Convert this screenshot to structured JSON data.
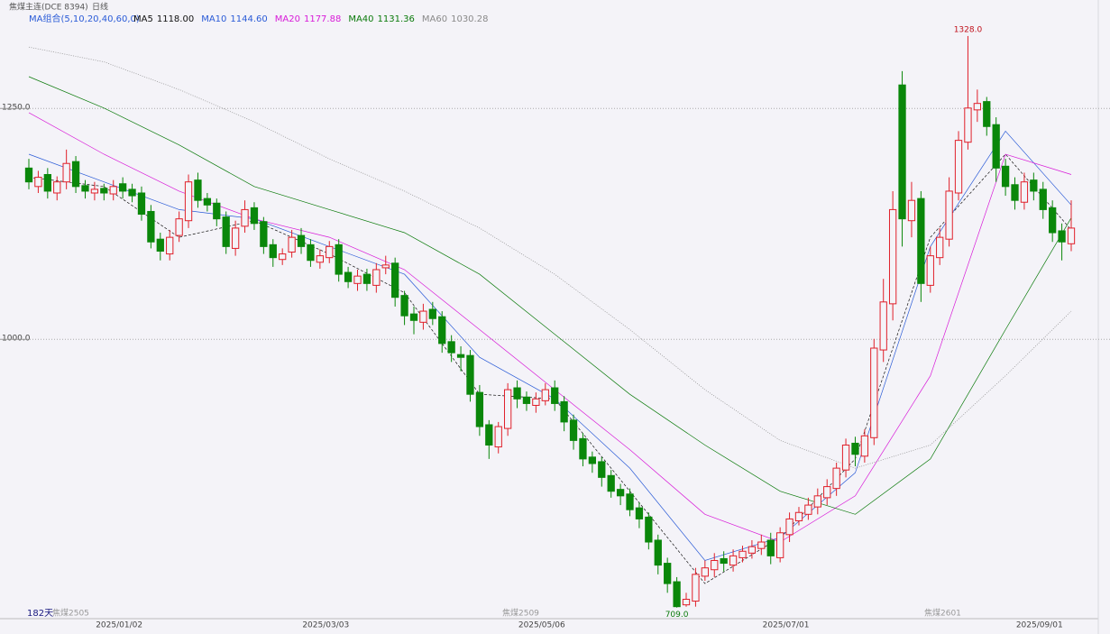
{
  "chart_data": {
    "type": "candlestick",
    "title": "焦煤主连(DCE 8394)",
    "period": "日线",
    "ma_group": "MA组合(5,10,20,40,60,0)",
    "categories": [
      null,
      null,
      null,
      null,
      null,
      null,
      null,
      null,
      null,
      null,
      "2025/01/02",
      null,
      null,
      null,
      null,
      null,
      null,
      null,
      null,
      null,
      null,
      null,
      null,
      null,
      null,
      null,
      null,
      null,
      null,
      null,
      null,
      null,
      "2025/03/03",
      null,
      null,
      null,
      null,
      null,
      null,
      null,
      null,
      null,
      null,
      null,
      null,
      null,
      null,
      null,
      null,
      null,
      null,
      null,
      null,
      null,
      null,
      "2025/05/06",
      null,
      null,
      null,
      null,
      null,
      null,
      null,
      null,
      null,
      null,
      null,
      null,
      null,
      null,
      null,
      null,
      null,
      null,
      null,
      null,
      null,
      null,
      null,
      null,
      null,
      "2025/07/01",
      null,
      null,
      null,
      null,
      null,
      null,
      null,
      null,
      null,
      null,
      null,
      null,
      null,
      null,
      null,
      null,
      null,
      null,
      null,
      null,
      null,
      null,
      null,
      null,
      null,
      null,
      "2025/09/01",
      null,
      null,
      null
    ],
    "open": [
      1185,
      1165,
      1178,
      1158,
      1170,
      1192,
      1166,
      1158,
      1163,
      1157,
      1168,
      1162,
      1158,
      1138,
      1108,
      1092,
      1112,
      1128,
      1172,
      1152,
      1147,
      1132,
      1098,
      1122,
      1142,
      1127,
      1102,
      1086,
      1094,
      1112,
      1102,
      1083,
      1088,
      1102,
      1072,
      1060,
      1070,
      1058,
      1077,
      1082,
      1047,
      1027,
      1018,
      1032,
      1024,
      997,
      983,
      982,
      942,
      907,
      883,
      903,
      947,
      937,
      928,
      933,
      947,
      932,
      912,
      892,
      872,
      867,
      852,
      837,
      832,
      817,
      807,
      782,
      757,
      737,
      712,
      716,
      743,
      750,
      762,
      755,
      763,
      768,
      773,
      782,
      763,
      788,
      803,
      810,
      818,
      828,
      838,
      858,
      887,
      873,
      893,
      988,
      1038,
      1275,
      1128,
      1152,
      1058,
      1088,
      1108,
      1158,
      1213,
      1248,
      1257,
      1232,
      1187,
      1167,
      1148,
      1172,
      1162,
      1142,
      1117,
      1103
    ],
    "high": [
      1195,
      1182,
      1185,
      1176,
      1205,
      1198,
      1172,
      1170,
      1168,
      1172,
      1175,
      1168,
      1165,
      1145,
      1115,
      1118,
      1138,
      1178,
      1180,
      1158,
      1152,
      1138,
      1128,
      1150,
      1148,
      1132,
      1108,
      1098,
      1118,
      1120,
      1108,
      1097,
      1106,
      1108,
      1078,
      1075,
      1076,
      1082,
      1090,
      1088,
      1052,
      1035,
      1038,
      1040,
      1030,
      1004,
      992,
      988,
      950,
      912,
      910,
      952,
      955,
      943,
      942,
      952,
      955,
      938,
      918,
      898,
      878,
      872,
      858,
      843,
      838,
      823,
      812,
      788,
      763,
      742,
      725,
      752,
      760,
      768,
      770,
      772,
      776,
      782,
      788,
      790,
      796,
      812,
      818,
      828,
      838,
      848,
      866,
      892,
      894,
      902,
      1000,
      1065,
      1160,
      1290,
      1170,
      1160,
      1100,
      1120,
      1175,
      1225,
      1328,
      1270,
      1262,
      1240,
      1195,
      1175,
      1180,
      1180,
      1170,
      1150,
      1125,
      1150
    ],
    "low": [
      1162,
      1158,
      1152,
      1150,
      1162,
      1158,
      1152,
      1150,
      1150,
      1150,
      1152,
      1148,
      1128,
      1098,
      1085,
      1085,
      1105,
      1120,
      1142,
      1138,
      1122,
      1092,
      1090,
      1115,
      1118,
      1092,
      1078,
      1080,
      1088,
      1092,
      1078,
      1076,
      1082,
      1062,
      1055,
      1052,
      1052,
      1050,
      1070,
      1035,
      1015,
      1005,
      1010,
      1015,
      985,
      975,
      965,
      932,
      895,
      870,
      876,
      895,
      925,
      922,
      920,
      928,
      922,
      900,
      880,
      862,
      855,
      840,
      828,
      820,
      808,
      795,
      772,
      745,
      725,
      709,
      710,
      710,
      738,
      742,
      748,
      748,
      758,
      762,
      766,
      756,
      758,
      780,
      798,
      804,
      810,
      820,
      830,
      850,
      862,
      866,
      885,
      975,
      1020,
      1100,
      1110,
      1040,
      1050,
      1080,
      1100,
      1150,
      1205,
      1235,
      1220,
      1170,
      1155,
      1140,
      1140,
      1150,
      1130,
      1105,
      1085,
      1095
    ],
    "close": [
      1170,
      1175,
      1160,
      1170,
      1190,
      1165,
      1160,
      1162,
      1158,
      1165,
      1160,
      1155,
      1135,
      1105,
      1095,
      1110,
      1130,
      1170,
      1150,
      1145,
      1130,
      1100,
      1120,
      1140,
      1125,
      1100,
      1088,
      1092,
      1110,
      1100,
      1085,
      1090,
      1100,
      1070,
      1062,
      1068,
      1060,
      1075,
      1080,
      1045,
      1025,
      1020,
      1030,
      1022,
      995,
      985,
      980,
      940,
      905,
      885,
      905,
      945,
      935,
      930,
      935,
      945,
      930,
      910,
      890,
      870,
      865,
      850,
      835,
      830,
      815,
      805,
      780,
      755,
      735,
      710,
      718,
      745,
      752,
      760,
      757,
      765,
      770,
      775,
      780,
      765,
      790,
      805,
      812,
      820,
      830,
      840,
      860,
      885,
      875,
      895,
      990,
      1040,
      1140,
      1130,
      1150,
      1060,
      1090,
      1110,
      1160,
      1215,
      1250,
      1255,
      1230,
      1185,
      1165,
      1150,
      1170,
      1160,
      1140,
      1115,
      1105,
      1120
    ],
    "up_color": "#e0202a",
    "down_color": "#0a870a",
    "ma": [
      {
        "name": "MA5",
        "value_label": "1118.00",
        "color": "#111111",
        "x": [
          0,
          8,
          16,
          24,
          32,
          40,
          48,
          56,
          64,
          72,
          80,
          88,
          96,
          104,
          111
        ],
        "values": [
          1175,
          1165,
          1110,
          1128,
          1092,
          1050,
          940,
          935,
          835,
          735,
          785,
          870,
          1110,
          1200,
          1118
        ]
      },
      {
        "name": "MA10",
        "value_label": "1144.60",
        "color": "#2a5bd7",
        "x": [
          0,
          8,
          16,
          24,
          32,
          40,
          48,
          56,
          64,
          72,
          80,
          88,
          96,
          104,
          111
        ],
        "values": [
          1200,
          1170,
          1140,
          1130,
          1100,
          1070,
          980,
          935,
          860,
          760,
          785,
          855,
          1100,
          1225,
          1145
        ]
      },
      {
        "name": "MA20",
        "value_label": "1177.88",
        "color": "#d81ad8",
        "x": [
          0,
          8,
          16,
          24,
          32,
          40,
          48,
          56,
          64,
          72,
          80,
          88,
          96,
          104,
          111
        ],
        "values": [
          1245,
          1200,
          1160,
          1130,
          1110,
          1075,
          1010,
          945,
          880,
          810,
          780,
          830,
          960,
          1200,
          1178
        ]
      },
      {
        "name": "MA40",
        "value_label": "1131.36",
        "color": "#0a7a0a",
        "x": [
          0,
          8,
          16,
          24,
          32,
          40,
          48,
          56,
          64,
          72,
          80,
          88,
          96,
          104,
          111
        ],
        "values": [
          1284,
          1250,
          1210,
          1165,
          1140,
          1115,
          1070,
          1005,
          940,
          885,
          835,
          810,
          870,
          1010,
          1131
        ]
      },
      {
        "name": "MA60",
        "value_label": "1030.28",
        "color": "#8a8a8a",
        "x": [
          0,
          8,
          16,
          24,
          32,
          40,
          48,
          56,
          64,
          72,
          80,
          88,
          96,
          104,
          111
        ],
        "values": [
          1316,
          1300,
          1270,
          1235,
          1195,
          1160,
          1120,
          1070,
          1010,
          945,
          890,
          860,
          885,
          960,
          1030
        ]
      }
    ],
    "ylim": [
      697,
      1367
    ],
    "yticks": [
      {
        "value": 1250,
        "label": "1250.0"
      },
      {
        "value": 1000,
        "label": "1000.0"
      }
    ],
    "grid": true,
    "high_label": "1328.0",
    "low_label": "709.0",
    "days_label": "182天",
    "contract_labels": [
      "焦煤2505",
      "焦煤2509",
      "焦煤2601"
    ]
  }
}
